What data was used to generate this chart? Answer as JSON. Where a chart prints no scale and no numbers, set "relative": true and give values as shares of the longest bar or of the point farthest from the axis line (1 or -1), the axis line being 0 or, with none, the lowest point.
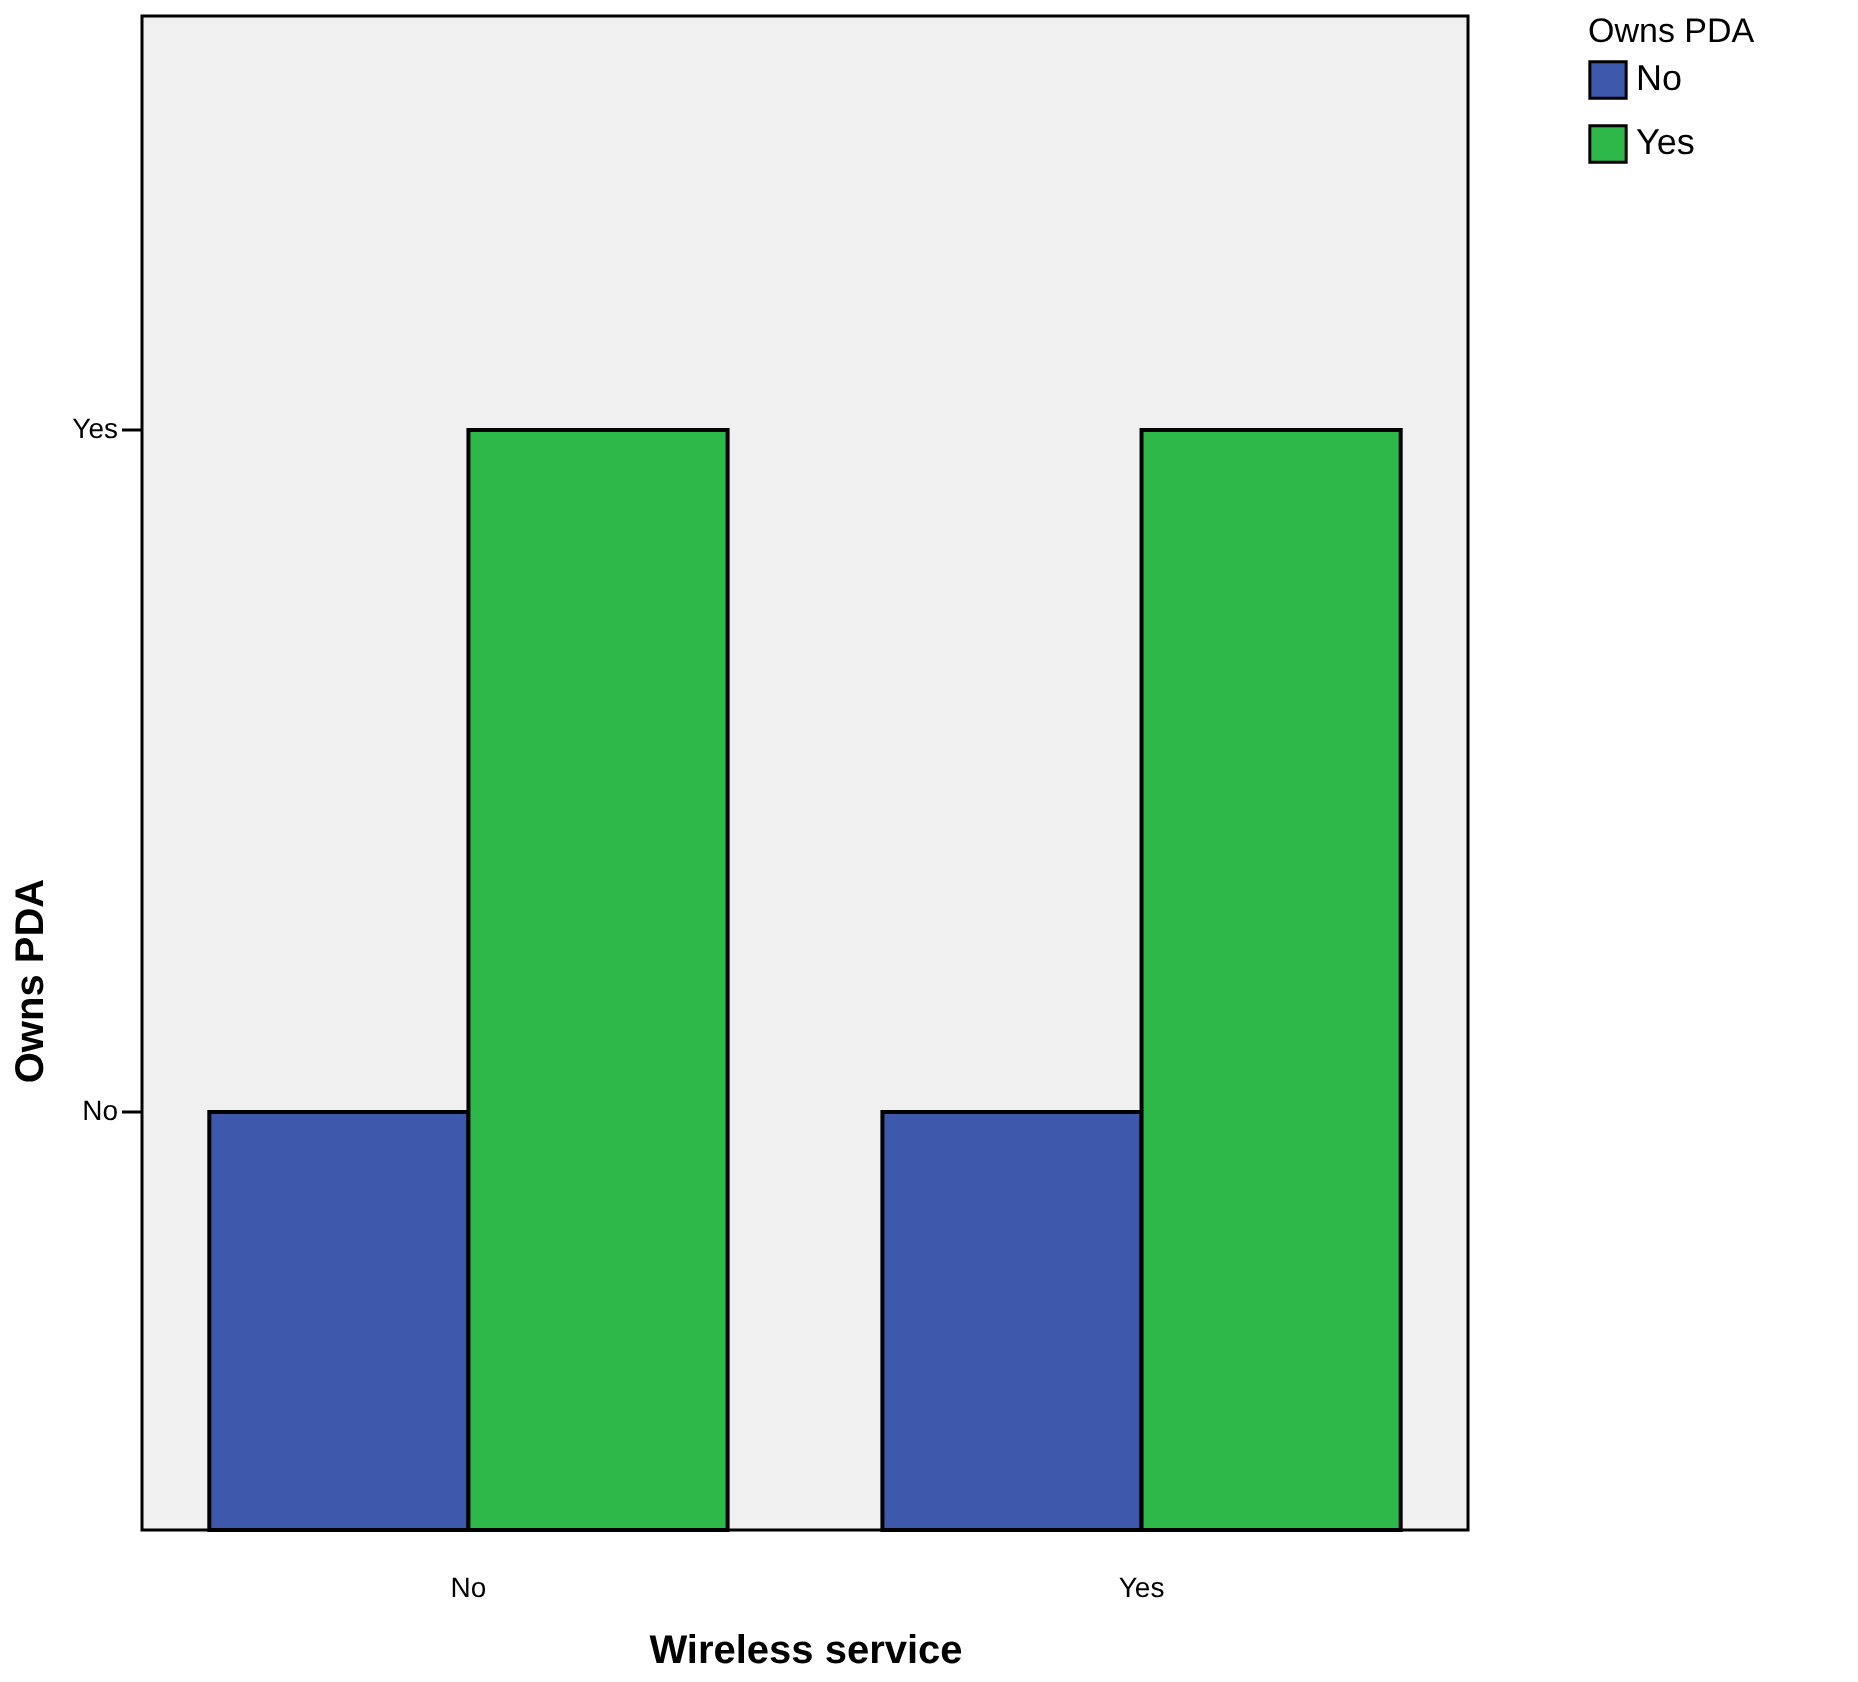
{
  "chart_data": {
    "type": "bar",
    "relative": true,
    "xlabel": "Wireless service",
    "ylabel": "Owns PDA",
    "legend_title": "Owns PDA",
    "categories": [
      "No",
      "Yes"
    ],
    "series": [
      {
        "name": "No",
        "color": "#3e58ac",
        "values": [
          0.38,
          0.38
        ]
      },
      {
        "name": "Yes",
        "color": "#2fb84a",
        "values": [
          1,
          1
        ]
      }
    ],
    "annotations": [
      "No",
      "Yes"
    ],
    "legend": "top right"
  }
}
